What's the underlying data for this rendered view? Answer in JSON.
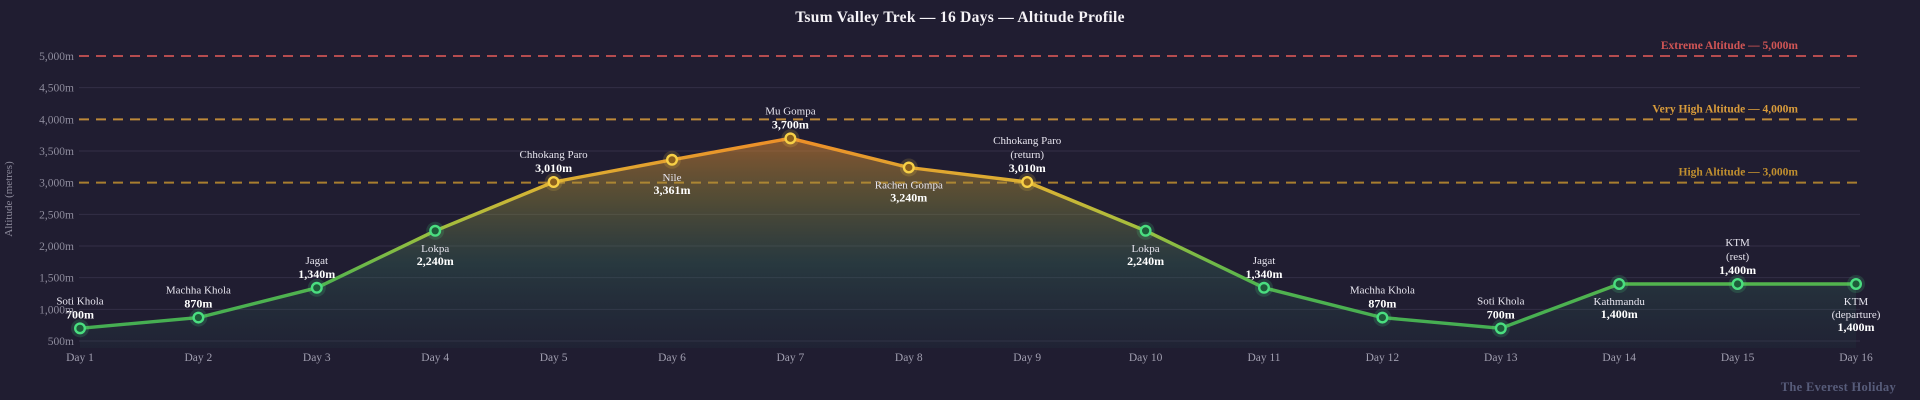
{
  "footer": "The Everest Holiday",
  "colors": {
    "background": "#201d31",
    "title": "#f5f3f7",
    "axis_text": "#8d8b9c",
    "x_axis_text": "#a19fb0",
    "grid": "rgba(190,185,220,0.12)",
    "label_name": "#e6e4ee",
    "label_value": "#ffffff",
    "footer": "#575c7a",
    "line_gradient": [
      "#3fab55",
      "#52b44e",
      "#9ebf3e",
      "#d9b334",
      "#ec9129",
      "#ec8f29"
    ],
    "area_gradient": [
      "rgba(222,132,45,0.55)",
      "rgba(160,150,60,0.38)",
      "rgba(58,120,96,0.30)",
      "rgba(36,78,78,0.12)"
    ],
    "point_low": {
      "ring": "#4ade80",
      "center": "#1e5c3a"
    },
    "point_high": {
      "ring": "#f7d046",
      "center": "#8a5f1d"
    },
    "high_point_threshold": 3000
  },
  "y_axis": {
    "label": "Altitude (metres)",
    "ticks": [
      {
        "value": 500,
        "label": "500m"
      },
      {
        "value": 1000,
        "label": "1,000m"
      },
      {
        "value": 1500,
        "label": "1,500m"
      },
      {
        "value": 2000,
        "label": "2,000m"
      },
      {
        "value": 2500,
        "label": "2,500m"
      },
      {
        "value": 3000,
        "label": "3,000m"
      },
      {
        "value": 3500,
        "label": "3,500m"
      },
      {
        "value": 4000,
        "label": "4,000m"
      },
      {
        "value": 4500,
        "label": "4,500m"
      },
      {
        "value": 5000,
        "label": "5,000m"
      }
    ]
  },
  "chart_data": {
    "type": "area",
    "title": "Tsum Valley Trek — 16 Days — Altitude Profile",
    "ylabel": "Altitude (metres)",
    "ylim": [
      500,
      5000
    ],
    "ytick_step": 500,
    "grid": "horizontal",
    "legend": "none",
    "x": [
      "Day 1",
      "Day 2",
      "Day 3",
      "Day 4",
      "Day 5",
      "Day 6",
      "Day 7",
      "Day 8",
      "Day 9",
      "Day 10",
      "Day 11",
      "Day 12",
      "Day 13",
      "Day 14",
      "Day 15",
      "Day 16"
    ],
    "series": [
      {
        "name": "Altitude",
        "values": [
          700,
          870,
          1340,
          2240,
          3010,
          3361,
          3700,
          3240,
          3010,
          2240,
          1340,
          870,
          700,
          1400,
          1400,
          1400
        ]
      }
    ],
    "points": [
      {
        "day": "Day 1",
        "name_lines": [
          "Soti Khola"
        ],
        "altitude": 700,
        "altitude_label": "700m",
        "label_position": "above"
      },
      {
        "day": "Day 2",
        "name_lines": [
          "Machha Khola"
        ],
        "altitude": 870,
        "altitude_label": "870m",
        "label_position": "above"
      },
      {
        "day": "Day 3",
        "name_lines": [
          "Jagat"
        ],
        "altitude": 1340,
        "altitude_label": "1,340m",
        "label_position": "above"
      },
      {
        "day": "Day 4",
        "name_lines": [
          "Lokpa"
        ],
        "altitude": 2240,
        "altitude_label": "2,240m",
        "label_position": "below"
      },
      {
        "day": "Day 5",
        "name_lines": [
          "Chhokang Paro"
        ],
        "altitude": 3010,
        "altitude_label": "3,010m",
        "label_position": "above"
      },
      {
        "day": "Day 6",
        "name_lines": [
          "Nile"
        ],
        "altitude": 3361,
        "altitude_label": "3,361m",
        "label_position": "below"
      },
      {
        "day": "Day 7",
        "name_lines": [
          "Mu Gompa"
        ],
        "altitude": 3700,
        "altitude_label": "3,700m",
        "label_position": "above"
      },
      {
        "day": "Day 8",
        "name_lines": [
          "Rachen Gompa"
        ],
        "altitude": 3240,
        "altitude_label": "3,240m",
        "label_position": "below"
      },
      {
        "day": "Day 9",
        "name_lines": [
          "Chhokang Paro",
          "(return)"
        ],
        "altitude": 3010,
        "altitude_label": "3,010m",
        "label_position": "above"
      },
      {
        "day": "Day 10",
        "name_lines": [
          "Lokpa"
        ],
        "altitude": 2240,
        "altitude_label": "2,240m",
        "label_position": "below"
      },
      {
        "day": "Day 11",
        "name_lines": [
          "Jagat"
        ],
        "altitude": 1340,
        "altitude_label": "1,340m",
        "label_position": "above"
      },
      {
        "day": "Day 12",
        "name_lines": [
          "Machha Khola"
        ],
        "altitude": 870,
        "altitude_label": "870m",
        "label_position": "above"
      },
      {
        "day": "Day 13",
        "name_lines": [
          "Soti Khola"
        ],
        "altitude": 700,
        "altitude_label": "700m",
        "label_position": "above"
      },
      {
        "day": "Day 14",
        "name_lines": [
          "Kathmandu"
        ],
        "altitude": 1400,
        "altitude_label": "1,400m",
        "label_position": "below"
      },
      {
        "day": "Day 15",
        "name_lines": [
          "KTM",
          "(rest)"
        ],
        "altitude": 1400,
        "altitude_label": "1,400m",
        "label_position": "above"
      },
      {
        "day": "Day 16",
        "name_lines": [
          "KTM",
          "(departure)"
        ],
        "altitude": 1400,
        "altitude_label": "1,400m",
        "label_position": "below"
      }
    ],
    "thresholds": [
      {
        "value": 5000,
        "label": "Extreme Altitude — 5,000m",
        "color": "#d05555"
      },
      {
        "value": 4000,
        "label": "Very High Altitude — 4,000m",
        "color": "#d99c3b"
      },
      {
        "value": 3000,
        "label": "High Altitude — 3,000m",
        "color": "#c08f2f"
      }
    ]
  }
}
